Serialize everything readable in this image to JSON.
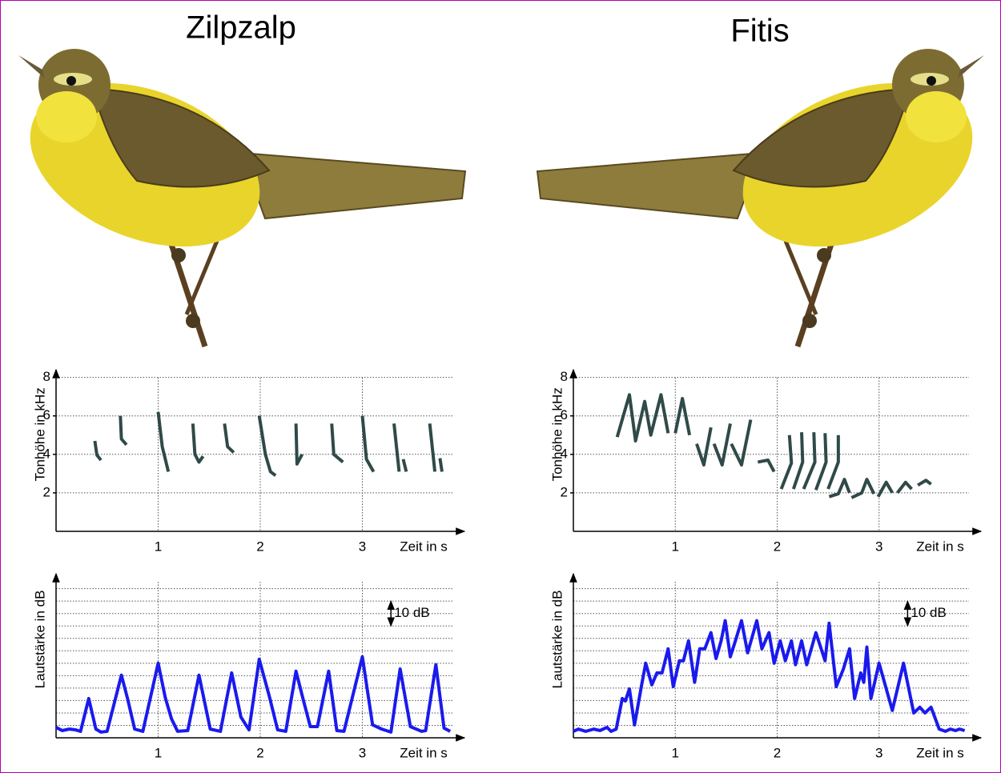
{
  "chart_data": [
    {
      "type": "line",
      "title": "Zilpzalp",
      "xlabel": "Zeit in s",
      "ylabel": "Tonhöhe in kHz",
      "xlim": [
        0,
        4
      ],
      "ylim": [
        0,
        8.4
      ],
      "xticks": [
        1,
        2,
        3
      ],
      "yticks": [
        2,
        4,
        6,
        8
      ],
      "grid": true,
      "series": [
        {
          "color": "#2f4a48",
          "x": [
            0.38,
            0.4,
            0.44,
            null,
            0.63,
            0.64,
            0.69,
            null,
            1.0,
            1.04,
            1.1,
            null,
            1.34,
            1.36,
            1.4,
            1.44,
            null,
            1.65,
            1.68,
            1.74,
            null,
            1.99,
            2.05,
            2.1,
            2.15,
            null,
            2.35,
            2.36,
            2.41,
            null,
            2.7,
            2.72,
            2.81,
            null,
            3.0,
            3.04,
            3.11,
            null,
            3.31,
            3.36,
            null,
            3.4,
            3.43,
            null,
            3.66,
            3.71,
            null,
            3.76,
            3.78
          ],
          "values": [
            4.7,
            3.96,
            3.7,
            null,
            6.0,
            4.8,
            4.5,
            null,
            6.2,
            4.4,
            3.1,
            null,
            5.6,
            4.0,
            3.6,
            3.9,
            null,
            5.6,
            4.4,
            4.1,
            null,
            6.0,
            4.0,
            3.1,
            2.9,
            null,
            5.6,
            3.5,
            4.0,
            null,
            5.6,
            4.0,
            3.6,
            null,
            6.0,
            3.75,
            3.1,
            null,
            5.6,
            3.1,
            null,
            3.75,
            3.1,
            null,
            5.6,
            3.1,
            null,
            3.8,
            3.1
          ]
        }
      ]
    },
    {
      "type": "line",
      "title": "Fitis",
      "xlabel": "Zeit in s",
      "ylabel": "Tonhöhe in kHz",
      "xlim": [
        0,
        4
      ],
      "ylim": [
        0,
        8.4
      ],
      "xticks": [
        1,
        2,
        3
      ],
      "yticks": [
        2,
        4,
        6,
        8
      ],
      "grid": true,
      "series": [
        {
          "color": "#2f4a48",
          "x": [
            0.43,
            0.55,
            0.61,
            0.7,
            0.76,
            0.86,
            0.93,
            null,
            1.0,
            1.07,
            1.14,
            null,
            1.21,
            1.28,
            1.35,
            null,
            1.38,
            1.46,
            1.54,
            null,
            1.55,
            1.65,
            1.74,
            null,
            1.81,
            1.91,
            1.97,
            null,
            2.12,
            2.14,
            2.04,
            null,
            2.24,
            2.25,
            2.16,
            null,
            2.36,
            2.37,
            2.26,
            null,
            2.47,
            2.48,
            2.38,
            null,
            2.6,
            2.6,
            2.5,
            null,
            2.51,
            2.6,
            2.66,
            2.71,
            null,
            2.73,
            2.83,
            2.88,
            2.95,
            null,
            2.99,
            3.07,
            3.13,
            null,
            3.18,
            3.26,
            3.32,
            null,
            3.38,
            3.46,
            3.51
          ],
          "values": [
            4.9,
            7.1,
            4.7,
            6.75,
            5.0,
            7.1,
            5.1,
            null,
            5.1,
            6.9,
            5.0,
            null,
            4.55,
            3.45,
            5.4,
            null,
            4.55,
            3.45,
            5.6,
            null,
            4.55,
            3.45,
            5.8,
            null,
            3.6,
            3.7,
            3.1,
            null,
            5.0,
            3.55,
            2.2,
            null,
            5.15,
            3.6,
            2.2,
            null,
            5.15,
            3.6,
            2.2,
            null,
            5.1,
            3.6,
            2.15,
            null,
            5.0,
            3.6,
            2.2,
            null,
            1.8,
            1.95,
            2.7,
            2.0,
            null,
            1.75,
            2.0,
            2.7,
            1.95,
            null,
            1.8,
            2.55,
            2.0,
            null,
            2.0,
            2.55,
            2.2,
            null,
            2.4,
            2.65,
            2.45
          ]
        }
      ]
    },
    {
      "type": "line",
      "xlabel": "Zeit in s",
      "ylabel": "Lautstärke in dB",
      "xlim": [
        0,
        4
      ],
      "ylim": [
        0,
        66
      ],
      "xticks": [
        1,
        2,
        3
      ],
      "ygrid": [
        5,
        10,
        15,
        20,
        25,
        30,
        35,
        40,
        45,
        50,
        55,
        60
      ],
      "grid": true,
      "annotation": {
        "text": "10 dB",
        "x": 3.28,
        "from": 45,
        "to": 55
      },
      "series": [
        {
          "color": "#1a1aee",
          "x": [
            0,
            0.06,
            0.13,
            0.19,
            0.24,
            0.32,
            0.39,
            0.44,
            0.5,
            0.64,
            0.7,
            0.77,
            0.85,
            1.0,
            1.07,
            1.13,
            1.19,
            1.29,
            1.4,
            1.51,
            1.61,
            1.72,
            1.81,
            1.89,
            1.99,
            2.09,
            2.17,
            2.25,
            2.35,
            2.42,
            2.49,
            2.56,
            2.67,
            2.75,
            2.82,
            3.0,
            3.1,
            3.19,
            3.28,
            3.37,
            3.47,
            3.58,
            3.62,
            3.72,
            3.8,
            3.86
          ],
          "values": [
            4.2,
            2.9,
            3.5,
            3.2,
            2.6,
            15.8,
            3.5,
            2.3,
            2.6,
            25.2,
            15.8,
            3.5,
            2.6,
            30.0,
            16.1,
            7.7,
            2.6,
            2.9,
            25.2,
            3.5,
            2.6,
            26.1,
            8.4,
            3.2,
            31.6,
            16.5,
            3.2,
            2.6,
            26.8,
            15.5,
            4.5,
            4.5,
            26.8,
            2.9,
            2.6,
            32.6,
            5.2,
            3.5,
            2.3,
            27.7,
            4.5,
            2.6,
            2.9,
            29.4,
            3.9,
            2.6
          ]
        }
      ]
    },
    {
      "type": "line",
      "xlabel": "Zeit in s",
      "ylabel": "Lautstärke in dB",
      "xlim": [
        0,
        4
      ],
      "ylim": [
        0,
        66
      ],
      "xticks": [
        1,
        2,
        3
      ],
      "ygrid": [
        5,
        10,
        15,
        20,
        25,
        30,
        35,
        40,
        45,
        50,
        55,
        60
      ],
      "grid": true,
      "annotation": {
        "text": "10 dB",
        "x": 3.28,
        "from": 45,
        "to": 55
      },
      "series": [
        {
          "color": "#1a1aee",
          "x": [
            0,
            0.05,
            0.12,
            0.2,
            0.26,
            0.33,
            0.37,
            0.42,
            0.48,
            0.51,
            0.55,
            0.6,
            0.67,
            0.71,
            0.77,
            0.82,
            0.87,
            0.93,
            0.98,
            1.04,
            1.08,
            1.13,
            1.19,
            1.24,
            1.29,
            1.35,
            1.4,
            1.45,
            1.49,
            1.54,
            1.59,
            1.65,
            1.71,
            1.8,
            1.85,
            1.92,
            1.97,
            2.03,
            2.08,
            2.14,
            2.18,
            2.24,
            2.29,
            2.38,
            2.47,
            2.51,
            2.58,
            2.65,
            2.71,
            2.76,
            2.82,
            2.85,
            2.88,
            2.92,
            3.0,
            3.13,
            3.24,
            3.34,
            3.4,
            3.45,
            3.51,
            3.59,
            3.65,
            3.7,
            3.75,
            3.79,
            3.84
          ],
          "values": [
            2.6,
            3.5,
            2.6,
            3.5,
            2.9,
            4.2,
            2.6,
            3.5,
            15.8,
            14.8,
            19.7,
            5.2,
            21.3,
            30.0,
            21.3,
            26.1,
            26.1,
            35.8,
            20.6,
            31.0,
            31.0,
            39.0,
            22.3,
            35.8,
            35.8,
            42.3,
            31.9,
            39.0,
            47.1,
            32.6,
            39.0,
            47.1,
            34.2,
            47.1,
            35.8,
            42.3,
            30.0,
            39.0,
            31.0,
            39.0,
            29.4,
            39.0,
            29.4,
            42.3,
            31.0,
            46.1,
            20.6,
            27.7,
            35.8,
            15.8,
            26.1,
            22.3,
            36.5,
            15.8,
            30.0,
            11.0,
            30.0,
            10.0,
            12.3,
            10.0,
            12.3,
            3.5,
            2.6,
            3.5,
            2.9,
            3.5,
            2.9
          ]
        }
      ]
    }
  ]
}
